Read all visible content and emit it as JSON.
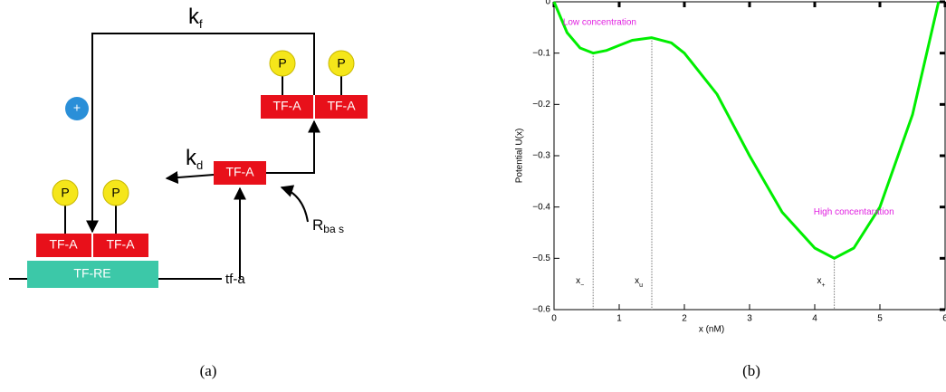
{
  "diagram": {
    "kf": {
      "main": "k",
      "sub": "f"
    },
    "kd": {
      "main": "k",
      "sub": "d"
    },
    "rbas": {
      "main": "R",
      "sub": "ba s"
    },
    "plus": "+",
    "phosphate": [
      "P",
      "P",
      "P",
      "P"
    ],
    "tfa_boxes": [
      "TF-A",
      "TF-A",
      "TF-A",
      "TF-A",
      "TF-A"
    ],
    "tfre": "TF-RE",
    "gene": "tf-a"
  },
  "captions": [
    "(a)",
    "(b)"
  ],
  "chart_data": {
    "type": "line",
    "xlabel": "x (nM)",
    "ylabel": "Potential U(x)",
    "x": [
      0,
      0.2,
      0.4,
      0.6,
      0.8,
      1.0,
      1.2,
      1.5,
      1.8,
      2.0,
      2.5,
      3.0,
      3.5,
      4.0,
      4.3,
      4.6,
      5.0,
      5.5,
      5.9
    ],
    "series": [
      {
        "color": "#00ee00",
        "values": [
          0,
          -0.06,
          -0.09,
          -0.1,
          -0.095,
          -0.085,
          -0.075,
          -0.07,
          -0.08,
          -0.1,
          -0.18,
          -0.3,
          -0.41,
          -0.48,
          -0.5,
          -0.48,
          -0.4,
          -0.22,
          0
        ]
      }
    ],
    "xlim": [
      0,
      6
    ],
    "ylim": [
      -0.6,
      0
    ],
    "xticks": [
      0,
      1,
      2,
      3,
      4,
      5,
      6
    ],
    "yticks": [
      {
        "value": -0.6,
        "label": "−0.6"
      },
      {
        "value": -0.5,
        "label": "−0.5"
      },
      {
        "value": -0.4,
        "label": "−0.4"
      },
      {
        "value": -0.3,
        "label": "−0.3"
      },
      {
        "value": -0.2,
        "label": "−0.2"
      },
      {
        "value": -0.1,
        "label": "−0.1"
      },
      0
    ],
    "markers": [
      {
        "x": 0.6,
        "label": "x",
        "sub": "−"
      },
      {
        "x": 1.5,
        "label": "x",
        "sub": "u"
      },
      {
        "x": 4.3,
        "label": "x",
        "sub": "+"
      }
    ],
    "annotations": [
      {
        "text": "Low concentration",
        "x": 0.7,
        "y": -0.04,
        "color": "#e020e0"
      },
      {
        "text": "High concentaration",
        "x": 4.6,
        "y": -0.41,
        "color": "#e020e0"
      }
    ]
  }
}
